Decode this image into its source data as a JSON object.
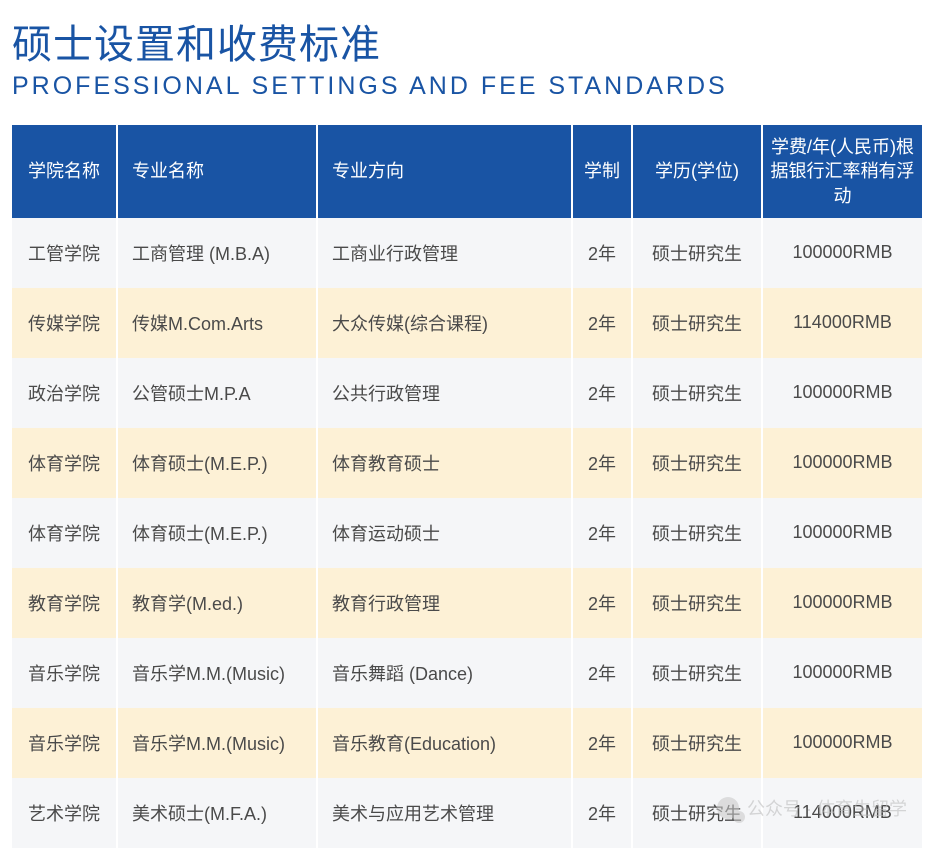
{
  "title_cn": "硕士设置和收费标准",
  "title_en": "PROFESSIONAL SETTINGS AND FEE STANDARDS",
  "table": {
    "columns": [
      "学院名称",
      "专业名称",
      "专业方向",
      "学制",
      "学历(学位)",
      "学费/年(人民币)根据银行汇率稍有浮动"
    ],
    "rows": [
      [
        "工管学院",
        "工商管理 (M.B.A)",
        "工商业行政管理",
        "2年",
        "硕士研究生",
        "100000RMB"
      ],
      [
        "传媒学院",
        "传媒M.Com.Arts",
        "大众传媒(综合课程)",
        "2年",
        "硕士研究生",
        "114000RMB"
      ],
      [
        "政治学院",
        "公管硕士M.P.A",
        "公共行政管理",
        "2年",
        "硕士研究生",
        "100000RMB"
      ],
      [
        "体育学院",
        "体育硕士(M.E.P.)",
        "体育教育硕士",
        "2年",
        "硕士研究生",
        "100000RMB"
      ],
      [
        "体育学院",
        "体育硕士(M.E.P.)",
        "体育运动硕士",
        "2年",
        "硕士研究生",
        "100000RMB"
      ],
      [
        "教育学院",
        "教育学(M.ed.)",
        "教育行政管理",
        "2年",
        "硕士研究生",
        "100000RMB"
      ],
      [
        "音乐学院",
        "音乐学M.M.(Music)",
        "音乐舞蹈 (Dance)",
        "2年",
        "硕士研究生",
        "100000RMB"
      ],
      [
        "音乐学院",
        "音乐学M.M.(Music)",
        "音乐教育(Education)",
        "2年",
        "硕士研究生",
        "100000RMB"
      ],
      [
        "艺术学院",
        "美术硕士(M.F.A.)",
        "美术与应用艺术管理",
        "2年",
        "硕士研究生",
        "114000RMB"
      ]
    ],
    "col_classes": [
      "col-0",
      "col-1",
      "col-2",
      "col-3",
      "col-4",
      "col-5"
    ],
    "header_bg": "#1954a4",
    "header_fg": "#ffffff",
    "row_colors": [
      "#f5f6f8",
      "#fdf1d6"
    ],
    "text_color": "#4a4a4a",
    "font_size_header": 18,
    "font_size_cell": 18
  },
  "watermark": "公众号 · 体育生留学"
}
